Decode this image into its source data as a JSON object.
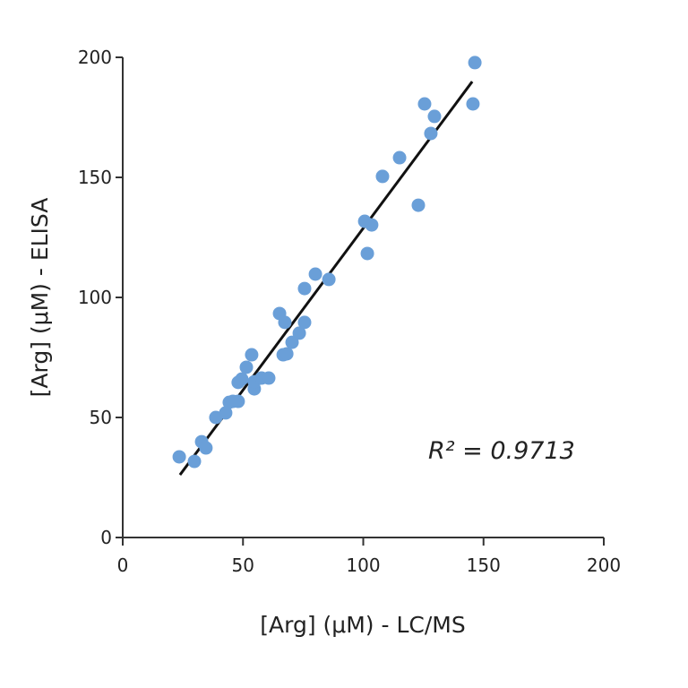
{
  "chart_data": {
    "type": "scatter",
    "title": "",
    "xlabel": "[Arg] (μM) - LC/MS",
    "ylabel": "[Arg] (μM) - ELISA",
    "xlim": [
      0,
      200
    ],
    "ylim": [
      0,
      200
    ],
    "xticks": [
      0,
      50,
      100,
      150,
      200
    ],
    "yticks": [
      0,
      50,
      100,
      150,
      200
    ],
    "grid": false,
    "legend": null,
    "point_color": "#6a9fd8",
    "line_color": "#111111",
    "series": [
      {
        "name": "samples",
        "points": [
          [
            23.5,
            33.6
          ],
          [
            29.8,
            31.7
          ],
          [
            32.8,
            39.9
          ],
          [
            34.6,
            37.3
          ],
          [
            38.7,
            50.0
          ],
          [
            42.8,
            51.9
          ],
          [
            44.3,
            56.3
          ],
          [
            45.8,
            56.7
          ],
          [
            48.0,
            56.7
          ],
          [
            48.0,
            64.6
          ],
          [
            49.5,
            66.0
          ],
          [
            51.4,
            70.9
          ],
          [
            53.6,
            76.1
          ],
          [
            54.7,
            61.9
          ],
          [
            54.7,
            64.9
          ],
          [
            57.7,
            66.4
          ],
          [
            60.7,
            66.4
          ],
          [
            65.2,
            93.3
          ],
          [
            66.7,
            76.1
          ],
          [
            67.4,
            89.6
          ],
          [
            68.2,
            76.5
          ],
          [
            70.4,
            81.3
          ],
          [
            73.4,
            85.1
          ],
          [
            75.6,
            89.6
          ],
          [
            75.6,
            103.7
          ],
          [
            80.1,
            109.7
          ],
          [
            85.7,
            107.5
          ],
          [
            100.6,
            131.7
          ],
          [
            103.5,
            130.2
          ],
          [
            101.7,
            118.3
          ],
          [
            108.0,
            150.4
          ],
          [
            115.1,
            158.2
          ],
          [
            122.9,
            138.4
          ],
          [
            128.1,
            168.3
          ],
          [
            129.6,
            175.4
          ],
          [
            125.5,
            180.6
          ],
          [
            145.6,
            180.6
          ],
          [
            146.4,
            197.8
          ]
        ]
      }
    ],
    "regression_line": {
      "x0": 23.8,
      "y0": 26.1,
      "x1": 145.3,
      "y1": 189.9
    },
    "annotations": [
      {
        "text": "R² = 0.9713",
        "x": 128,
        "y": 36
      }
    ]
  },
  "labels": {
    "xlabel": "[Arg] (μM) - LC/MS",
    "ylabel": "[Arg] (μM) - ELISA",
    "r2": "R² = 0.9713"
  }
}
